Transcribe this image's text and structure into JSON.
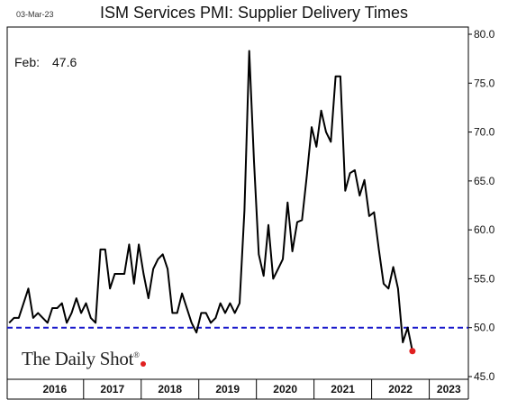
{
  "header": {
    "date": "03-Mar-23",
    "title": "ISM Services PMI: Supplier Delivery Times"
  },
  "callout": {
    "label": "Feb:",
    "value": "47.6"
  },
  "logo": {
    "text": "The Daily Shot",
    "mark": "®"
  },
  "colors": {
    "line": "#000000",
    "reference": "#1a1acc",
    "last_point": "#e02020"
  },
  "chart_data": {
    "type": "line",
    "title": "ISM Services PMI: Supplier Delivery Times",
    "x_start": "2015-09",
    "frequency": "monthly",
    "y_axis_position": "right",
    "ylim": [
      45,
      80
    ],
    "yticks": [
      "45.0",
      "50.0",
      "55.0",
      "60.0",
      "65.0",
      "70.0",
      "75.0",
      "80.0"
    ],
    "xticks": [
      "2016",
      "2017",
      "2018",
      "2019",
      "2020",
      "2021",
      "2022",
      "2023"
    ],
    "reference_line": {
      "y": 50,
      "style": "dashed"
    },
    "last_point_marker": true,
    "series": [
      {
        "values": [
          50.5,
          51.0,
          51.0,
          52.5,
          54.0,
          51.0,
          51.5,
          51.0,
          50.5,
          52.0,
          52.0,
          52.5,
          50.5,
          51.5,
          53.0,
          51.5,
          52.5,
          51.0,
          50.5,
          58.0,
          58.0,
          54.0,
          55.5,
          55.5,
          55.5,
          58.5,
          54.5,
          58.5,
          55.5,
          53.0,
          56.0,
          57.0,
          57.5,
          56.0,
          51.5,
          51.5,
          53.5,
          52.0,
          50.5,
          49.5,
          51.5,
          51.5,
          50.5,
          51.0,
          52.5,
          51.5,
          52.5,
          51.5,
          52.5,
          62.0,
          78.3,
          67.0,
          57.5,
          55.3,
          60.5,
          55.0,
          56.0,
          57.0,
          62.8,
          57.8,
          60.8,
          61.0,
          65.5,
          70.5,
          68.5,
          72.2,
          70.0,
          69.0,
          75.7,
          75.7,
          64.0,
          65.8,
          66.1,
          63.5,
          65.1,
          61.4,
          61.8,
          58.0,
          54.5,
          54.0,
          56.2,
          54.0,
          48.5,
          50.0,
          47.6
        ]
      }
    ]
  }
}
